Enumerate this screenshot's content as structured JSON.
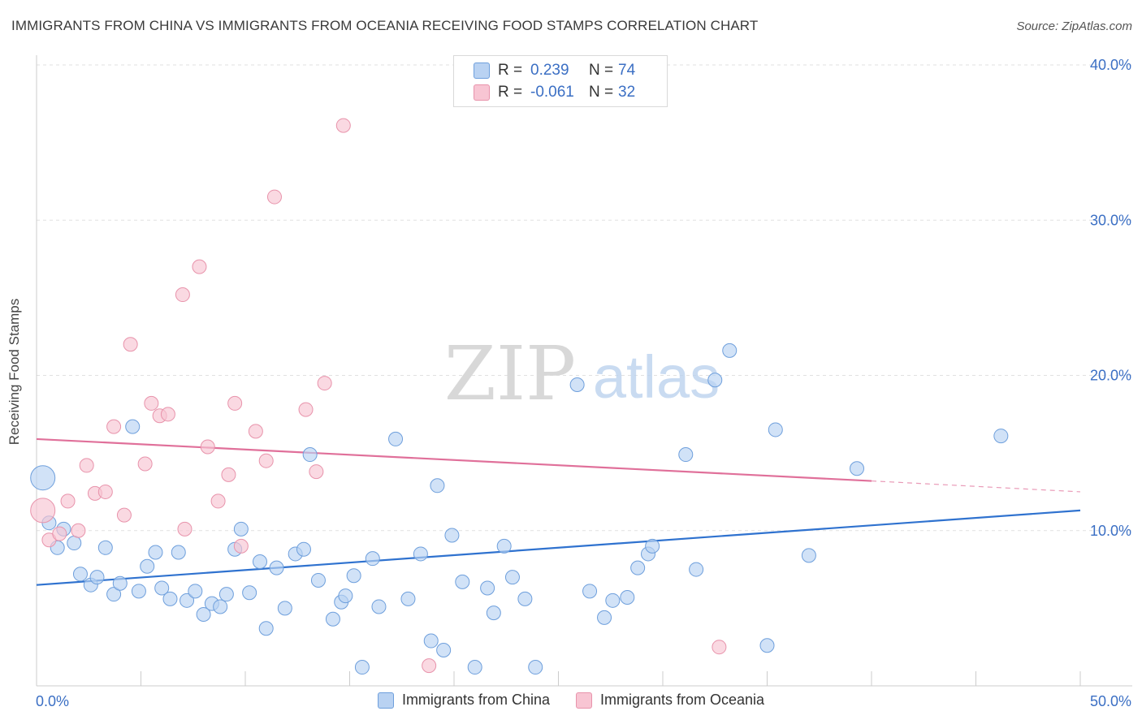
{
  "title": "IMMIGRANTS FROM CHINA VS IMMIGRANTS FROM OCEANIA RECEIVING FOOD STAMPS CORRELATION CHART",
  "source": "Source: ZipAtlas.com",
  "watermark": {
    "part1": "ZIP",
    "part2": "atlas"
  },
  "legend": {
    "rows": [
      {
        "r_label": "R =",
        "r_value": "0.239",
        "n_label": "N =",
        "n_value": "74"
      },
      {
        "r_label": "R =",
        "r_value": "-0.061",
        "n_label": "N =",
        "n_value": "32"
      }
    ]
  },
  "colors": {
    "china_fill": "#b9d2f2",
    "china_stroke": "#6e9fdc",
    "china_line": "#2f72cf",
    "oceania_fill": "#f8c5d3",
    "oceania_stroke": "#e893ab",
    "oceania_line": "#e0709a",
    "tick_label": "#3b6fc4",
    "grid": "#e1e1e1"
  },
  "chart_data": {
    "type": "scatter",
    "title": "IMMIGRANTS FROM CHINA VS IMMIGRANTS FROM OCEANIA RECEIVING FOOD STAMPS CORRELATION CHART",
    "xlabel": "",
    "ylabel": "Receiving Food Stamps",
    "xlim": [
      0,
      50
    ],
    "ylim": [
      0,
      40
    ],
    "x_tick_labels": [
      "0.0%",
      "50.0%"
    ],
    "y_ticks": [
      10,
      20,
      30,
      40
    ],
    "y_tick_labels": [
      "10.0%",
      "20.0%",
      "30.0%",
      "40.0%"
    ],
    "grid": true,
    "series": [
      {
        "name": "Immigrants from China",
        "points": [
          [
            0.3,
            13.4
          ],
          [
            0.6,
            10.5
          ],
          [
            1.0,
            8.9
          ],
          [
            1.3,
            10.1
          ],
          [
            1.8,
            9.2
          ],
          [
            2.1,
            7.2
          ],
          [
            2.6,
            6.5
          ],
          [
            2.9,
            7.0
          ],
          [
            3.3,
            8.9
          ],
          [
            3.7,
            5.9
          ],
          [
            4.0,
            6.6
          ],
          [
            4.6,
            16.7
          ],
          [
            4.9,
            6.1
          ],
          [
            5.3,
            7.7
          ],
          [
            5.7,
            8.6
          ],
          [
            6.0,
            6.3
          ],
          [
            6.4,
            5.6
          ],
          [
            6.8,
            8.6
          ],
          [
            7.2,
            5.5
          ],
          [
            7.6,
            6.1
          ],
          [
            8.0,
            4.6
          ],
          [
            8.4,
            5.3
          ],
          [
            8.8,
            5.1
          ],
          [
            9.1,
            5.9
          ],
          [
            9.5,
            8.8
          ],
          [
            9.8,
            10.1
          ],
          [
            10.2,
            6.0
          ],
          [
            10.7,
            8.0
          ],
          [
            11.0,
            3.7
          ],
          [
            11.5,
            7.6
          ],
          [
            11.9,
            5.0
          ],
          [
            12.4,
            8.5
          ],
          [
            12.8,
            8.8
          ],
          [
            13.1,
            14.9
          ],
          [
            13.5,
            6.8
          ],
          [
            14.2,
            4.3
          ],
          [
            14.6,
            5.4
          ],
          [
            14.8,
            5.8
          ],
          [
            15.2,
            7.1
          ],
          [
            15.6,
            1.2
          ],
          [
            16.1,
            8.2
          ],
          [
            16.4,
            5.1
          ],
          [
            17.2,
            15.9
          ],
          [
            17.8,
            5.6
          ],
          [
            18.4,
            8.5
          ],
          [
            18.9,
            2.9
          ],
          [
            19.2,
            12.9
          ],
          [
            19.5,
            2.3
          ],
          [
            19.9,
            9.7
          ],
          [
            20.4,
            6.7
          ],
          [
            21.0,
            1.2
          ],
          [
            21.6,
            6.3
          ],
          [
            21.9,
            4.7
          ],
          [
            22.4,
            9.0
          ],
          [
            22.8,
            7.0
          ],
          [
            23.4,
            5.6
          ],
          [
            23.9,
            1.2
          ],
          [
            25.9,
            19.4
          ],
          [
            26.5,
            6.1
          ],
          [
            27.2,
            4.4
          ],
          [
            27.6,
            5.5
          ],
          [
            28.3,
            5.7
          ],
          [
            28.8,
            7.6
          ],
          [
            29.3,
            8.5
          ],
          [
            29.5,
            9.0
          ],
          [
            31.1,
            14.9
          ],
          [
            31.6,
            7.5
          ],
          [
            32.5,
            19.7
          ],
          [
            33.2,
            21.6
          ],
          [
            35.0,
            2.6
          ],
          [
            35.4,
            16.5
          ],
          [
            37.0,
            8.4
          ],
          [
            39.3,
            14.0
          ],
          [
            46.2,
            16.1
          ]
        ],
        "trendline": {
          "x": [
            0,
            50
          ],
          "y": [
            6.5,
            11.3
          ]
        }
      },
      {
        "name": "Immigrants from Oceania",
        "points": [
          [
            0.3,
            11.3
          ],
          [
            0.6,
            9.4
          ],
          [
            1.1,
            9.8
          ],
          [
            1.5,
            11.9
          ],
          [
            2.0,
            10.0
          ],
          [
            2.4,
            14.2
          ],
          [
            2.8,
            12.4
          ],
          [
            3.3,
            12.5
          ],
          [
            3.7,
            16.7
          ],
          [
            4.2,
            11.0
          ],
          [
            4.5,
            22.0
          ],
          [
            5.2,
            14.3
          ],
          [
            5.5,
            18.2
          ],
          [
            5.9,
            17.4
          ],
          [
            6.3,
            17.5
          ],
          [
            7.1,
            10.1
          ],
          [
            7.0,
            25.2
          ],
          [
            7.8,
            27.0
          ],
          [
            8.2,
            15.4
          ],
          [
            8.7,
            11.9
          ],
          [
            9.2,
            13.6
          ],
          [
            9.5,
            18.2
          ],
          [
            9.8,
            9.0
          ],
          [
            10.5,
            16.4
          ],
          [
            11.0,
            14.5
          ],
          [
            11.4,
            31.5
          ],
          [
            12.9,
            17.8
          ],
          [
            13.4,
            13.8
          ],
          [
            13.8,
            19.5
          ],
          [
            14.7,
            36.1
          ],
          [
            18.8,
            1.3
          ],
          [
            32.7,
            2.5
          ]
        ],
        "trendline": {
          "x": [
            0,
            40
          ],
          "y": [
            15.9,
            13.2
          ]
        },
        "trendline_dashed": {
          "x": [
            40,
            50
          ],
          "y": [
            13.2,
            12.5
          ]
        }
      }
    ]
  }
}
